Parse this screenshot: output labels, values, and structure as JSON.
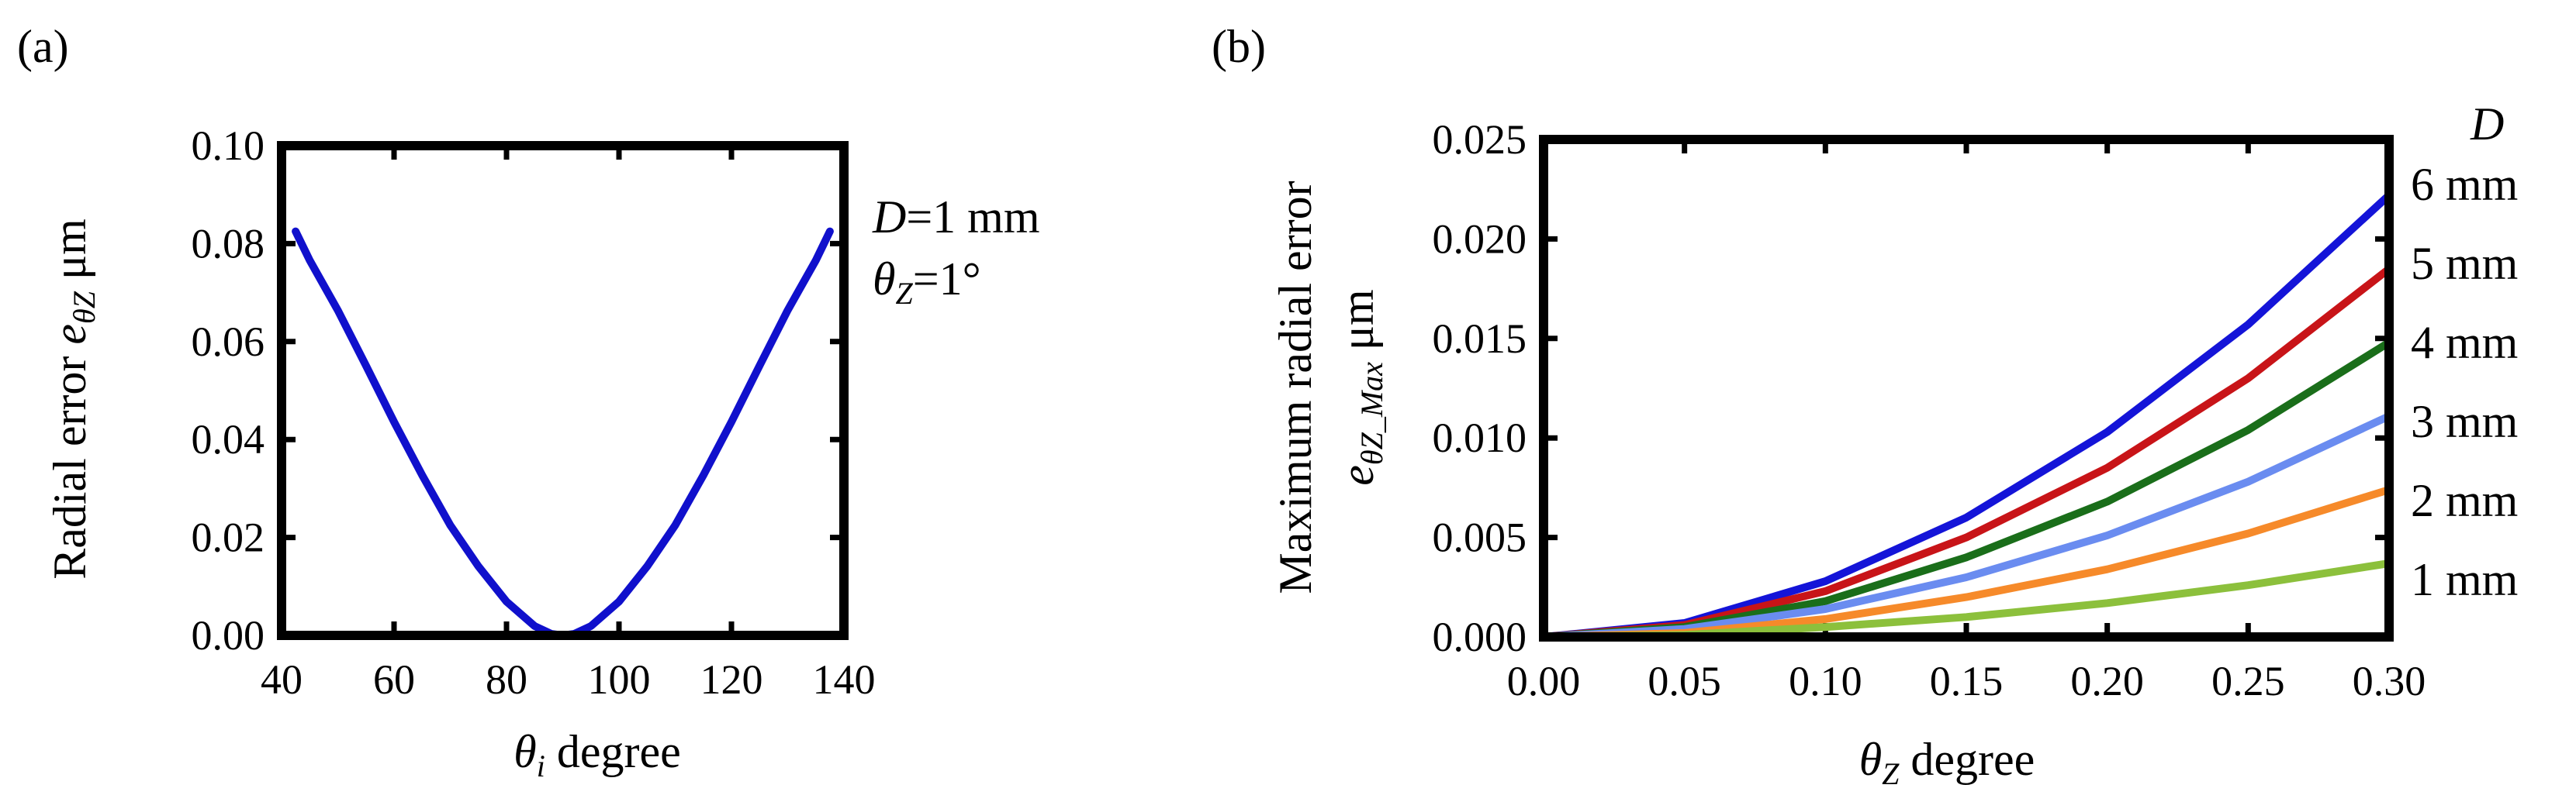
{
  "chart_data": [
    {
      "panel": "(a)",
      "type": "line",
      "title": "",
      "ylabel_prefix": "Radial error ",
      "ylabel_sym": "e",
      "ylabel_sub": "θZ",
      "ylabel_suffix": " μm",
      "xlabel_sym": "θ",
      "xlabel_sub": "i",
      "xlabel_suffix": " degree",
      "xlim": [
        40,
        140
      ],
      "ylim": [
        0,
        0.1
      ],
      "xticks": [
        40,
        60,
        80,
        100,
        120,
        140
      ],
      "xtick_labels": [
        "40",
        "60",
        "80",
        "100",
        "120",
        "140"
      ],
      "yticks": [
        0,
        0.02,
        0.04,
        0.06,
        0.08,
        0.1
      ],
      "ytick_labels": [
        "0.00",
        "0.02",
        "0.04",
        "0.06",
        "0.08",
        "0.10"
      ],
      "annotation": {
        "line1_sym": "D",
        "line1_rest": "=1 mm",
        "line2_sym": "θ",
        "line2_sub": "Z",
        "line2_rest": "=1°"
      },
      "series": [
        {
          "name": "D=1 mm, θZ=1°",
          "color": "#1010cc",
          "x": [
            42.5,
            45,
            50,
            55,
            60,
            65,
            70,
            75,
            80,
            85,
            88,
            90,
            92,
            95,
            100,
            105,
            110,
            115,
            120,
            125,
            130,
            135,
            137.5
          ],
          "y": [
            0.0825,
            0.0766,
            0.0664,
            0.0551,
            0.0436,
            0.0327,
            0.0225,
            0.0141,
            0.0069,
            0.0019,
            0.0003,
            0.0,
            0.0003,
            0.0019,
            0.0069,
            0.0141,
            0.0225,
            0.0327,
            0.0436,
            0.0551,
            0.0664,
            0.0766,
            0.0825
          ]
        }
      ]
    },
    {
      "panel": "(b)",
      "type": "line",
      "title": "",
      "ylabel_line1": "Maximum radial error",
      "ylabel_sym": "e",
      "ylabel_sub": "θZ_Max",
      "ylabel_suffix": " μm",
      "xlabel_sym": "θ",
      "xlabel_sub": "Z",
      "xlabel_suffix": " degree",
      "xlim": [
        0,
        0.3
      ],
      "ylim": [
        0,
        0.025
      ],
      "xticks": [
        0,
        0.05,
        0.1,
        0.15,
        0.2,
        0.25,
        0.3
      ],
      "xtick_labels": [
        "0.00",
        "0.05",
        "0.10",
        "0.15",
        "0.20",
        "0.25",
        "0.30"
      ],
      "yticks": [
        0,
        0.005,
        0.01,
        0.015,
        0.02,
        0.025
      ],
      "ytick_labels": [
        "0.000",
        "0.005",
        "0.010",
        "0.015",
        "0.020",
        "0.025"
      ],
      "legend_title": "D",
      "x": [
        0,
        0.05,
        0.1,
        0.15,
        0.2,
        0.25,
        0.3
      ],
      "series": [
        {
          "name": "6 mm",
          "color": "#1414d8",
          "y": [
            0,
            0.0007,
            0.0028,
            0.006,
            0.0103,
            0.0157,
            0.0222
          ]
        },
        {
          "name": "5 mm",
          "color": "#c81418",
          "y": [
            0,
            0.0006,
            0.0023,
            0.005,
            0.0085,
            0.013,
            0.0185
          ]
        },
        {
          "name": "4 mm",
          "color": "#1a6e1a",
          "y": [
            0,
            0.0005,
            0.0018,
            0.004,
            0.0068,
            0.0104,
            0.0148
          ]
        },
        {
          "name": "3 mm",
          "color": "#6a8cf0",
          "y": [
            0,
            0.0004,
            0.0014,
            0.003,
            0.0051,
            0.0078,
            0.0111
          ]
        },
        {
          "name": "2 mm",
          "color": "#f68a2a",
          "y": [
            0,
            0.0002,
            0.0009,
            0.002,
            0.0034,
            0.0052,
            0.0074
          ]
        },
        {
          "name": "1 mm",
          "color": "#8cc03c",
          "y": [
            0,
            0.0001,
            0.0005,
            0.001,
            0.0017,
            0.0026,
            0.0037
          ]
        }
      ]
    }
  ]
}
